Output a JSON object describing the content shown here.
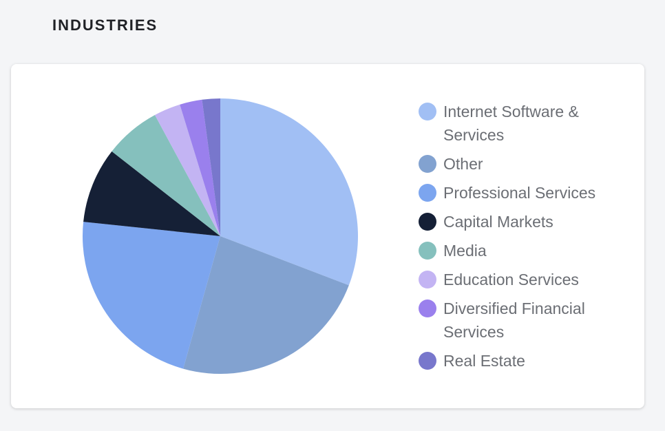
{
  "header": {
    "title": "INDUSTRIES"
  },
  "chart_data": {
    "type": "pie",
    "title": "",
    "categories": [
      "Internet Software & Services",
      "Other",
      "Professional Services",
      "Capital Markets",
      "Media",
      "Education Services",
      "Diversified Financial Services",
      "Real Estate"
    ],
    "values": [
      30.5,
      23.3,
      22.1,
      8.8,
      6.5,
      3.1,
      2.6,
      2.1
    ],
    "colors": [
      "#a1bff4",
      "#82a2d0",
      "#7ca5ef",
      "#152036",
      "#85c0bd",
      "#c3b4f3",
      "#9a80ed",
      "#7877cc"
    ],
    "legend_placement": "right"
  }
}
